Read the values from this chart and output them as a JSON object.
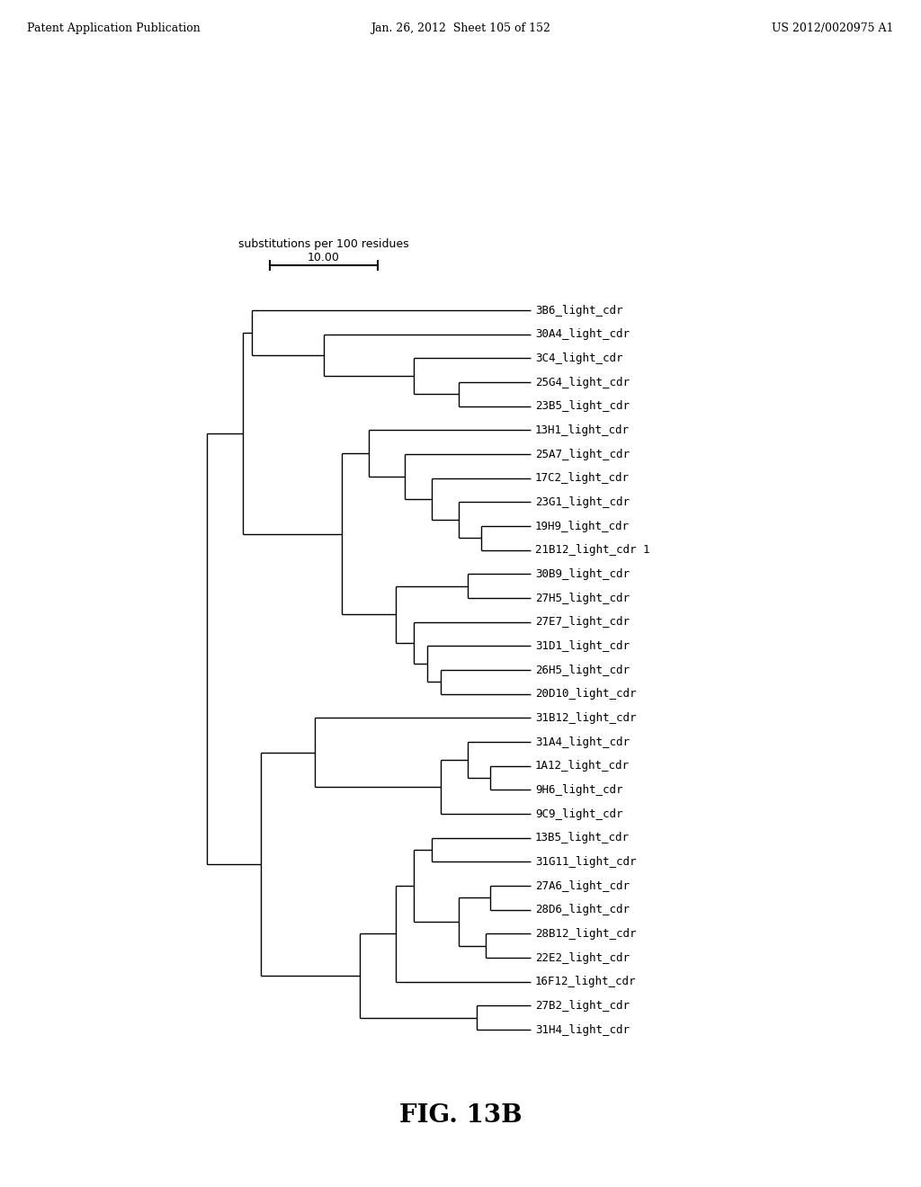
{
  "title": "FIG. 13B",
  "header_left": "Patent Application Publication",
  "header_center": "Jan. 26, 2012  Sheet 105 of 152",
  "header_right": "US 2012/0020975 A1",
  "scale_label": "10.00",
  "scale_sublabel": "substitutions per 100 residues",
  "leaves": [
    "31H4_light_cdr",
    "27B2_light_cdr",
    "16F12_light_cdr",
    "22E2_light_cdr",
    "28B12_light_cdr",
    "28D6_light_cdr",
    "27A6_light_cdr",
    "31G11_light_cdr",
    "13B5_light_cdr",
    "9C9_light_cdr",
    "9H6_light_cdr",
    "1A12_light_cdr",
    "31A4_light_cdr",
    "31B12_light_cdr",
    "20D10_light_cdr",
    "26H5_light_cdr",
    "31D1_light_cdr",
    "27E7_light_cdr",
    "27H5_light_cdr",
    "30B9_light_cdr",
    "21B12_light_cdr 1",
    "19H9_light_cdr",
    "23G1_light_cdr",
    "17C2_light_cdr",
    "25A7_light_cdr",
    "13H1_light_cdr",
    "23B5_light_cdr",
    "25G4_light_cdr",
    "3C4_light_cdr",
    "30A4_light_cdr",
    "3B6_light_cdr"
  ],
  "background_color": "#ffffff",
  "line_color": "#000000",
  "text_color": "#000000",
  "font_size": 9,
  "header_font_size": 9,
  "title_font_size": 20
}
